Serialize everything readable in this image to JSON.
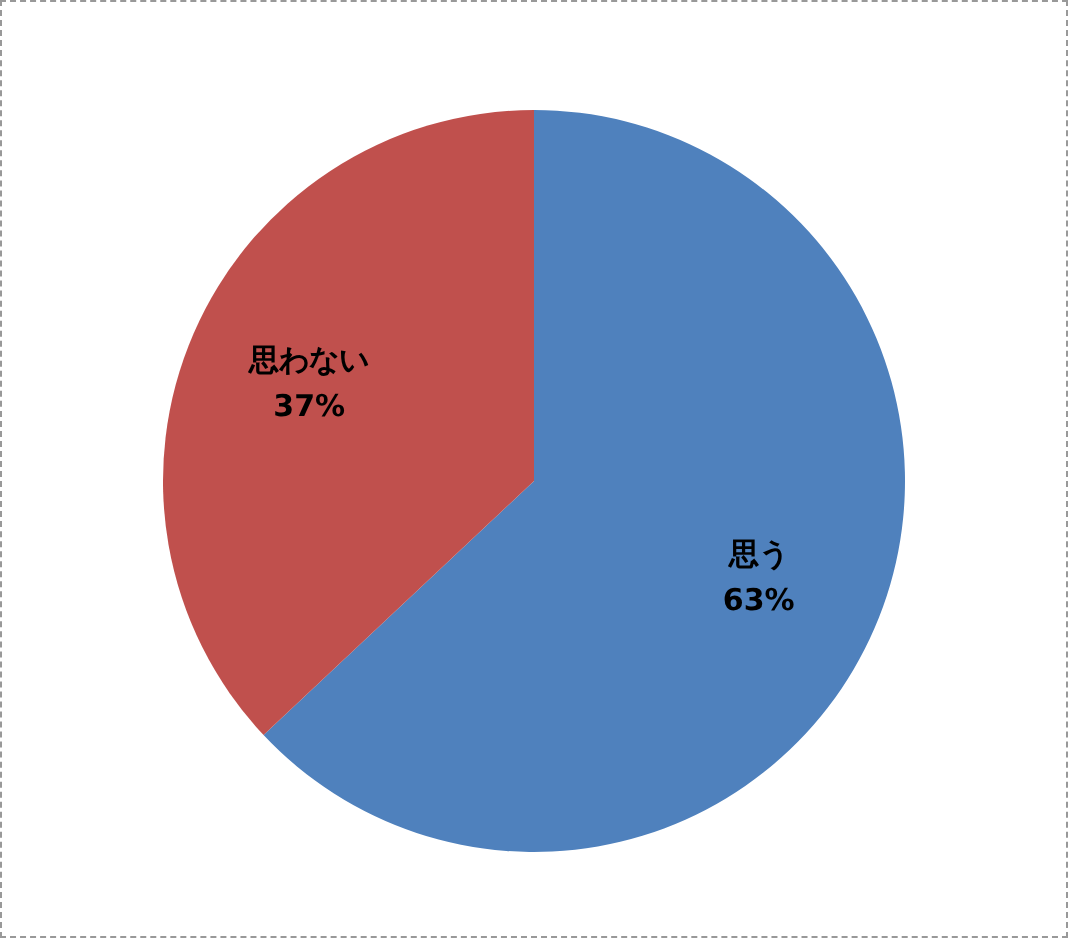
{
  "chart_data": {
    "type": "pie",
    "categories": [
      "思う",
      "思わない"
    ],
    "values": [
      63,
      37
    ],
    "colors": [
      "#4f81bd",
      "#c0504d"
    ],
    "value_labels": [
      "63%",
      "37%"
    ],
    "legend": false
  }
}
